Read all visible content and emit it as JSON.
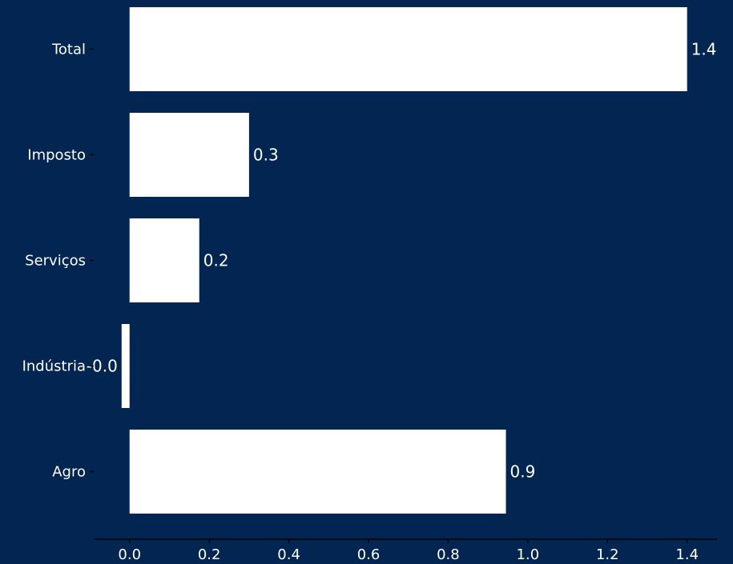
{
  "colors": {
    "background": "#022651",
    "bar": "#ffffff",
    "text": "#ffffff",
    "axis": "#000000"
  },
  "chart_data": {
    "type": "bar",
    "orientation": "horizontal",
    "categories": [
      "Total",
      "Imposto",
      "Serviços",
      "Indústria",
      "Agro"
    ],
    "values": [
      1.4,
      0.3,
      0.175,
      -0.02,
      0.945
    ],
    "data_labels": [
      "1.4",
      "0.3",
      "0.2",
      "-0.0",
      "0.9"
    ],
    "title": "",
    "xlabel": "",
    "ylabel": "",
    "xlim": [
      -0.09,
      1.475
    ],
    "xticks": [
      0.0,
      0.2,
      0.4,
      0.6,
      0.8,
      1.0,
      1.2,
      1.4
    ],
    "xtick_labels": [
      "0.0",
      "0.2",
      "0.4",
      "0.6",
      "0.8",
      "1.0",
      "1.2",
      "1.4"
    ],
    "grid": false,
    "legend": "none"
  }
}
